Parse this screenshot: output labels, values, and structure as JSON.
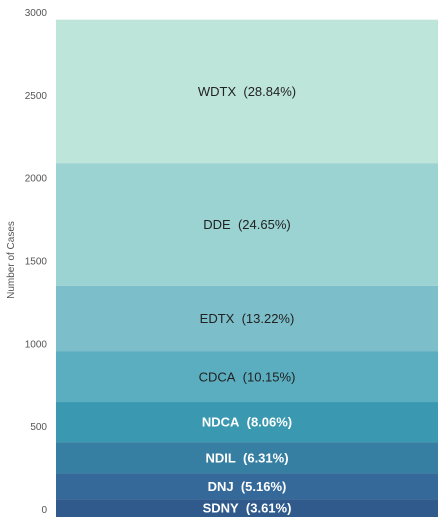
{
  "chart_data": {
    "type": "bar",
    "stacked": true,
    "ylabel": "Number of Cases",
    "ylim": [
      0,
      3000
    ],
    "yticks": [
      "0",
      "500",
      "1000",
      "1500",
      "2000",
      "2500",
      "3000"
    ],
    "segments": [
      {
        "label": "SDNY (3.61%)",
        "value": 108,
        "color": "#2f5a8b",
        "text_color": "#ffffff",
        "bold": true
      },
      {
        "label": "DNJ (5.16%)",
        "value": 155,
        "color": "#34699a",
        "text_color": "#ffffff",
        "bold": true
      },
      {
        "label": "NDIL (6.31%)",
        "value": 189,
        "color": "#367fa3",
        "text_color": "#ffffff",
        "bold": true
      },
      {
        "label": "NDCA (8.06%)",
        "value": 242,
        "color": "#3a98b1",
        "text_color": "#ffffff",
        "bold": true
      },
      {
        "label": "CDCA (10.15%)",
        "value": 305,
        "color": "#5aaec0",
        "text_color": "#222222",
        "bold": false
      },
      {
        "label": "EDTX (13.22%)",
        "value": 397,
        "color": "#7cbfca",
        "text_color": "#222222",
        "bold": false
      },
      {
        "label": "DDE (24.65%)",
        "value": 740,
        "color": "#9bd2d2",
        "text_color": "#222222",
        "bold": false
      },
      {
        "label": "WDTX (28.84%)",
        "value": 866,
        "color": "#bde5d9",
        "text_color": "#222222",
        "bold": false
      }
    ]
  }
}
